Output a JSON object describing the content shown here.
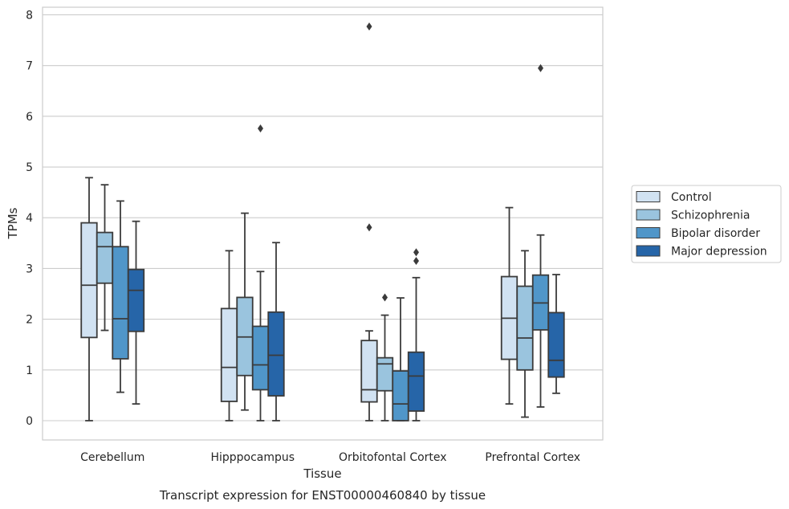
{
  "caption": "Transcript expression for ENST00000460840 by tissue",
  "chart_data": {
    "type": "box",
    "xlabel": "Tissue",
    "ylabel": "TPMs",
    "ylim": [
      -0.38,
      8.15
    ],
    "yticks": [
      0,
      1,
      2,
      3,
      4,
      5,
      6,
      7,
      8
    ],
    "grid": true,
    "legend_position": "right",
    "categories": [
      "Cerebellum",
      "Hipppocampus",
      "Orbitofontal Cortex",
      "Prefrontal Cortex"
    ],
    "series": [
      {
        "name": "Control",
        "color": "#d1e2f2",
        "boxes": [
          {
            "whisker_low": 0.0,
            "q1": 1.64,
            "median": 2.67,
            "q3": 3.9,
            "whisker_high": 4.79,
            "outliers": []
          },
          {
            "whisker_low": 0.0,
            "q1": 0.38,
            "median": 1.05,
            "q3": 2.21,
            "whisker_high": 3.35,
            "outliers": []
          },
          {
            "whisker_low": 0.0,
            "q1": 0.37,
            "median": 0.61,
            "q3": 1.58,
            "whisker_high": 1.77,
            "outliers": [
              3.81,
              7.77
            ]
          },
          {
            "whisker_low": 0.33,
            "q1": 1.21,
            "median": 2.02,
            "q3": 2.84,
            "whisker_high": 4.2,
            "outliers": []
          }
        ]
      },
      {
        "name": "Schizophrenia",
        "color": "#9ac4de",
        "boxes": [
          {
            "whisker_low": 1.78,
            "q1": 2.71,
            "median": 3.43,
            "q3": 3.71,
            "whisker_high": 4.65,
            "outliers": []
          },
          {
            "whisker_low": 0.21,
            "q1": 0.89,
            "median": 1.65,
            "q3": 2.43,
            "whisker_high": 4.09,
            "outliers": []
          },
          {
            "whisker_low": 0.0,
            "q1": 0.59,
            "median": 1.12,
            "q3": 1.24,
            "whisker_high": 2.08,
            "outliers": [
              2.43
            ]
          },
          {
            "whisker_low": 0.07,
            "q1": 1.0,
            "median": 1.63,
            "q3": 2.65,
            "whisker_high": 3.35,
            "outliers": []
          }
        ]
      },
      {
        "name": "Bipolar disorder",
        "color": "#5096c9",
        "boxes": [
          {
            "whisker_low": 0.56,
            "q1": 1.22,
            "median": 2.01,
            "q3": 3.43,
            "whisker_high": 4.33,
            "outliers": []
          },
          {
            "whisker_low": 0.0,
            "q1": 0.61,
            "median": 1.1,
            "q3": 1.86,
            "whisker_high": 2.94,
            "outliers": [
              5.76
            ]
          },
          {
            "whisker_low": 0.0,
            "q1": 0.0,
            "median": 0.33,
            "q3": 0.98,
            "whisker_high": 2.42,
            "outliers": []
          },
          {
            "whisker_low": 0.27,
            "q1": 1.79,
            "median": 2.32,
            "q3": 2.87,
            "whisker_high": 3.66,
            "outliers": [
              6.95
            ]
          }
        ]
      },
      {
        "name": "Major depression",
        "color": "#2665a8",
        "boxes": [
          {
            "whisker_low": 0.33,
            "q1": 1.76,
            "median": 2.57,
            "q3": 2.98,
            "whisker_high": 3.93,
            "outliers": []
          },
          {
            "whisker_low": 0.0,
            "q1": 0.49,
            "median": 1.29,
            "q3": 2.14,
            "whisker_high": 3.51,
            "outliers": []
          },
          {
            "whisker_low": 0.0,
            "q1": 0.19,
            "median": 0.88,
            "q3": 1.35,
            "whisker_high": 2.82,
            "outliers": [
              3.15,
              3.32
            ]
          },
          {
            "whisker_low": 0.54,
            "q1": 0.86,
            "median": 1.19,
            "q3": 2.13,
            "whisker_high": 2.88,
            "outliers": []
          }
        ]
      }
    ]
  }
}
